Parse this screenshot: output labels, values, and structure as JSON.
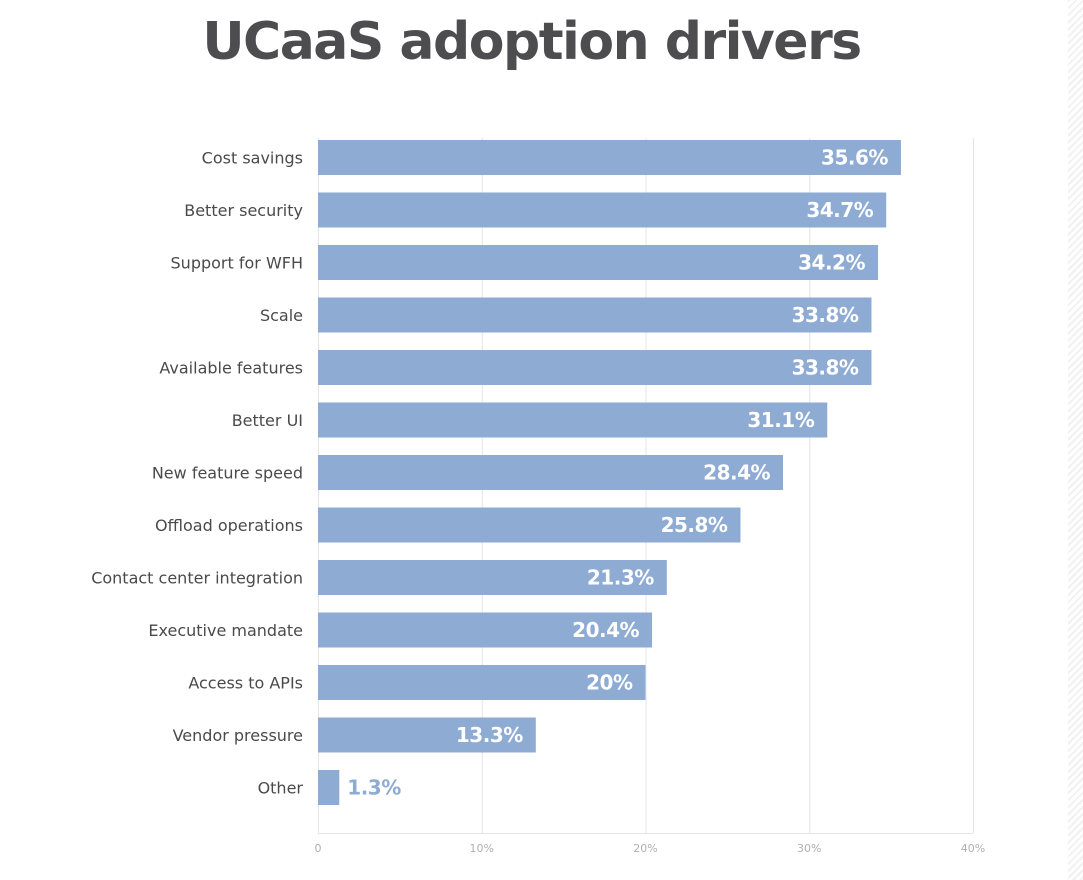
{
  "chart_data": {
    "type": "bar",
    "orientation": "horizontal",
    "title": "UCaaS adoption drivers",
    "categories": [
      "Cost savings",
      "Better security",
      "Support for WFH",
      "Scale",
      "Available features",
      "Better UI",
      "New feature speed",
      "Offload operations",
      "Contact center integration",
      "Executive mandate",
      "Access to APIs",
      "Vendor pressure",
      "Other"
    ],
    "values": [
      35.6,
      34.7,
      34.2,
      33.8,
      33.8,
      31.1,
      28.4,
      25.8,
      21.3,
      20.4,
      20,
      13.3,
      1.3
    ],
    "value_labels": [
      "35.6%",
      "34.7%",
      "34.2%",
      "33.8%",
      "33.8%",
      "31.1%",
      "28.4%",
      "25.8%",
      "21.3%",
      "20.4%",
      "20%",
      "13.3%",
      "1.3%"
    ],
    "xlim": [
      0,
      40
    ],
    "ticks": [
      0,
      10,
      20,
      30,
      40
    ],
    "tick_labels": [
      "0",
      "10%",
      "20%",
      "30%",
      "40%"
    ],
    "xlabel": "",
    "ylabel": "",
    "grid": "vertical",
    "legend": "none",
    "colors": {
      "bar": "#8eabd3",
      "label_inside": "#ffffff",
      "label_outside": "#8eabd3",
      "grid": "#e4e4e4",
      "title": "#4d4d4f"
    }
  }
}
